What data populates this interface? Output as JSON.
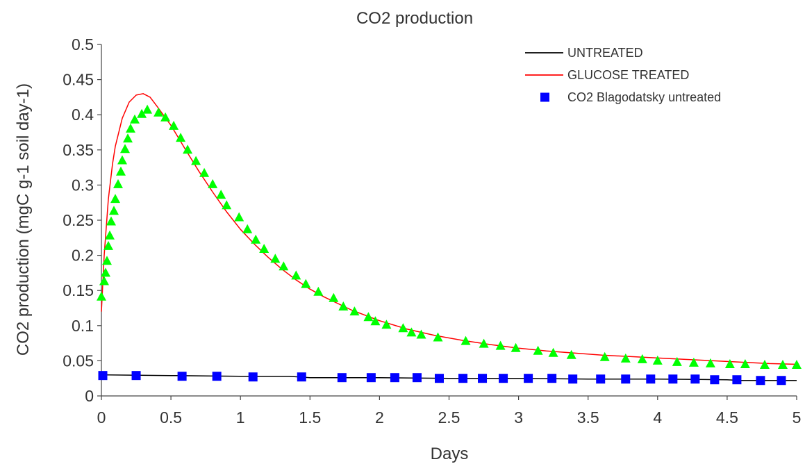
{
  "chart_data": {
    "type": "line",
    "title": "CO2 production",
    "xlabel": "Days",
    "ylabel": "CO2 production (mgC g-1 soil day-1)",
    "xlim": [
      0,
      5
    ],
    "ylim": [
      0,
      0.5
    ],
    "x_ticks": [
      "0",
      "0.5",
      "1",
      "1.5",
      "2",
      "2.5",
      "3",
      "3.5",
      "4",
      "4.5",
      "5"
    ],
    "y_ticks": [
      "0",
      "0.05",
      "0.1",
      "0.15",
      "0.2",
      "0.25",
      "0.3",
      "0.35",
      "0.4",
      "0.45",
      "0.5"
    ],
    "grid": false,
    "legend_position": "top-right",
    "series": [
      {
        "name": "UNTREATED",
        "kind": "line",
        "color": "#000000",
        "x": [
          0,
          0.5,
          1,
          1.35,
          1.5,
          2,
          2.5,
          3,
          3.5,
          4,
          4.5,
          4.6,
          5
        ],
        "y": [
          0.03,
          0.029,
          0.028,
          0.028,
          0.026,
          0.026,
          0.025,
          0.025,
          0.024,
          0.024,
          0.023,
          0.022,
          0.022
        ]
      },
      {
        "name": "GLUCOSE TREATED",
        "kind": "line",
        "color": "#ff0000",
        "x": [
          0,
          0.02,
          0.05,
          0.08,
          0.1,
          0.15,
          0.2,
          0.25,
          0.3,
          0.35,
          0.4,
          0.5,
          0.6,
          0.7,
          0.8,
          0.9,
          1.0,
          1.1,
          1.2,
          1.3,
          1.4,
          1.5,
          1.6,
          1.8,
          2.0,
          2.2,
          2.4,
          2.6,
          2.8,
          3.0,
          3.2,
          3.4,
          3.6,
          3.8,
          4.0,
          4.2,
          4.4,
          4.6,
          4.8,
          5.0
        ],
        "y": [
          0.12,
          0.2,
          0.28,
          0.33,
          0.355,
          0.395,
          0.418,
          0.428,
          0.43,
          0.425,
          0.412,
          0.385,
          0.352,
          0.32,
          0.29,
          0.262,
          0.237,
          0.216,
          0.197,
          0.18,
          0.165,
          0.152,
          0.141,
          0.122,
          0.107,
          0.095,
          0.086,
          0.079,
          0.073,
          0.068,
          0.064,
          0.061,
          0.058,
          0.056,
          0.054,
          0.052,
          0.05,
          0.048,
          0.046,
          0.045
        ]
      },
      {
        "name": "CO2 Blagodatsky untreated",
        "kind": "square-markers",
        "color": "#0000ff",
        "x": [
          0.01,
          0.25,
          0.58,
          0.83,
          1.09,
          1.44,
          1.73,
          1.94,
          2.11,
          2.27,
          2.43,
          2.6,
          2.74,
          2.89,
          3.07,
          3.24,
          3.39,
          3.59,
          3.77,
          3.95,
          4.11,
          4.27,
          4.41,
          4.57,
          4.74,
          4.89
        ],
        "y": [
          0.029,
          0.029,
          0.028,
          0.028,
          0.027,
          0.027,
          0.026,
          0.026,
          0.026,
          0.026,
          0.025,
          0.025,
          0.025,
          0.025,
          0.025,
          0.025,
          0.024,
          0.024,
          0.024,
          0.024,
          0.024,
          0.024,
          0.023,
          0.023,
          0.022,
          0.022
        ]
      },
      {
        "kind": "triangle-markers",
        "color": "#00ff00",
        "x": [
          0,
          0.02,
          0.03,
          0.04,
          0.05,
          0.06,
          0.07,
          0.09,
          0.1,
          0.12,
          0.14,
          0.15,
          0.17,
          0.19,
          0.21,
          0.24,
          0.29,
          0.33,
          0.41,
          0.46,
          0.52,
          0.57,
          0.62,
          0.68,
          0.74,
          0.8,
          0.86,
          0.9,
          0.99,
          1.05,
          1.11,
          1.17,
          1.25,
          1.31,
          1.4,
          1.47,
          1.56,
          1.67,
          1.74,
          1.82,
          1.92,
          1.97,
          2.05,
          2.17,
          2.23,
          2.3,
          2.42,
          2.62,
          2.75,
          2.87,
          2.98,
          3.14,
          3.25,
          3.38,
          3.62,
          3.77,
          3.89,
          4,
          4.14,
          4.26,
          4.38,
          4.52,
          4.63,
          4.77,
          4.9,
          5
        ],
        "y": [
          0.141,
          0.163,
          0.175,
          0.192,
          0.213,
          0.228,
          0.248,
          0.263,
          0.28,
          0.301,
          0.319,
          0.335,
          0.351,
          0.366,
          0.38,
          0.393,
          0.401,
          0.407,
          0.403,
          0.396,
          0.384,
          0.367,
          0.35,
          0.334,
          0.317,
          0.301,
          0.286,
          0.271,
          0.254,
          0.237,
          0.222,
          0.209,
          0.195,
          0.184,
          0.171,
          0.159,
          0.148,
          0.139,
          0.127,
          0.12,
          0.112,
          0.106,
          0.101,
          0.096,
          0.09,
          0.087,
          0.083,
          0.078,
          0.074,
          0.071,
          0.068,
          0.064,
          0.061,
          0.058,
          0.055,
          0.053,
          0.052,
          0.05,
          0.048,
          0.047,
          0.046,
          0.045,
          0.045,
          0.044,
          0.044,
          0.044
        ]
      }
    ]
  }
}
